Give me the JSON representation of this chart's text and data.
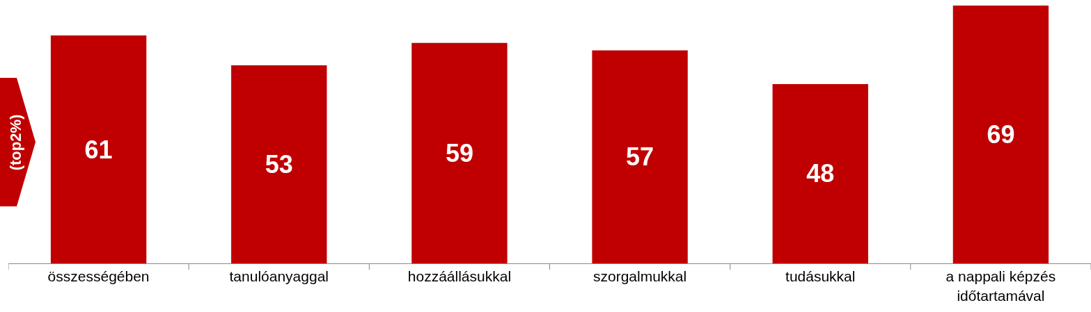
{
  "chart_data": {
    "type": "bar",
    "ylabel": "(top2%)",
    "categories": [
      "összességében",
      "tanulóanyaggal",
      "hozzáállásukkal",
      "szorgalmukkal",
      "tudásukkal",
      "a nappali képzés időtartamával"
    ],
    "values": [
      61,
      53,
      59,
      57,
      48,
      69
    ],
    "color": "#c00000",
    "data_labels": true
  }
}
